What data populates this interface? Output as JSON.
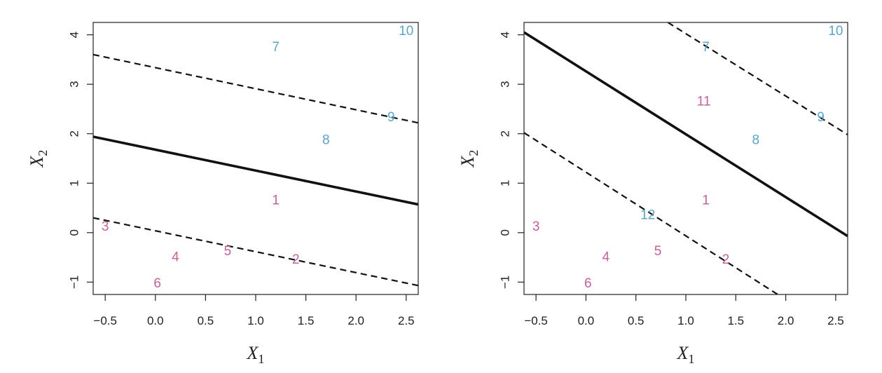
{
  "colors": {
    "blue": "#5aa5d0",
    "pink": "#c9609a"
  },
  "chart_data": [
    {
      "type": "scatter",
      "title": "",
      "xlabel_main": "X",
      "xlabel_sub": "1",
      "ylabel_main": "X",
      "ylabel_sub": "2",
      "xlim": [
        -0.62,
        2.62
      ],
      "ylim": [
        -1.25,
        4.25
      ],
      "xticks": [
        -0.5,
        0.0,
        0.5,
        1.0,
        1.5,
        2.0,
        2.5
      ],
      "xtick_labels": [
        "−0.5",
        "0.0",
        "0.5",
        "1.0",
        "1.5",
        "2.0",
        "2.5"
      ],
      "yticks": [
        -1,
        0,
        1,
        2,
        3,
        4
      ],
      "ytick_labels": [
        "−1",
        "0",
        "1",
        "2",
        "3",
        "4"
      ],
      "points": [
        {
          "label": "1",
          "x": 1.2,
          "y": 0.65,
          "class": "pink"
        },
        {
          "label": "2",
          "x": 1.4,
          "y": -0.55,
          "class": "pink"
        },
        {
          "label": "3",
          "x": -0.5,
          "y": 0.12,
          "class": "pink"
        },
        {
          "label": "4",
          "x": 0.2,
          "y": -0.5,
          "class": "pink"
        },
        {
          "label": "5",
          "x": 0.72,
          "y": -0.38,
          "class": "pink"
        },
        {
          "label": "6",
          "x": 0.02,
          "y": -1.03,
          "class": "pink"
        },
        {
          "label": "7",
          "x": 1.2,
          "y": 3.75,
          "class": "blue"
        },
        {
          "label": "8",
          "x": 1.7,
          "y": 1.87,
          "class": "blue"
        },
        {
          "label": "9",
          "x": 2.35,
          "y": 2.33,
          "class": "blue"
        },
        {
          "label": "10",
          "x": 2.5,
          "y": 4.07,
          "class": "blue"
        }
      ],
      "lines": [
        {
          "style": "solid",
          "x": [
            -0.62,
            2.62
          ],
          "y": [
            1.94,
            0.57
          ]
        },
        {
          "style": "dashed",
          "x": [
            -0.62,
            2.62
          ],
          "y": [
            3.6,
            2.22
          ]
        },
        {
          "style": "dashed",
          "x": [
            -0.62,
            2.62
          ],
          "y": [
            0.3,
            -1.07
          ]
        }
      ]
    },
    {
      "type": "scatter",
      "title": "",
      "xlabel_main": "X",
      "xlabel_sub": "1",
      "ylabel_main": "X",
      "ylabel_sub": "2",
      "xlim": [
        -0.62,
        2.62
      ],
      "ylim": [
        -1.25,
        4.25
      ],
      "xticks": [
        -0.5,
        0.0,
        0.5,
        1.0,
        1.5,
        2.0,
        2.5
      ],
      "xtick_labels": [
        "−0.5",
        "0.0",
        "0.5",
        "1.0",
        "1.5",
        "2.0",
        "2.5"
      ],
      "yticks": [
        -1,
        0,
        1,
        2,
        3,
        4
      ],
      "ytick_labels": [
        "−1",
        "0",
        "1",
        "2",
        "3",
        "4"
      ],
      "points": [
        {
          "label": "1",
          "x": 1.2,
          "y": 0.65,
          "class": "pink"
        },
        {
          "label": "2",
          "x": 1.4,
          "y": -0.55,
          "class": "pink"
        },
        {
          "label": "3",
          "x": -0.5,
          "y": 0.12,
          "class": "pink"
        },
        {
          "label": "4",
          "x": 0.2,
          "y": -0.5,
          "class": "pink"
        },
        {
          "label": "5",
          "x": 0.72,
          "y": -0.38,
          "class": "pink"
        },
        {
          "label": "6",
          "x": 0.02,
          "y": -1.03,
          "class": "pink"
        },
        {
          "label": "7",
          "x": 1.2,
          "y": 3.75,
          "class": "blue"
        },
        {
          "label": "8",
          "x": 1.7,
          "y": 1.87,
          "class": "blue"
        },
        {
          "label": "9",
          "x": 2.35,
          "y": 2.33,
          "class": "blue"
        },
        {
          "label": "10",
          "x": 2.5,
          "y": 4.07,
          "class": "blue"
        },
        {
          "label": "11",
          "x": 1.18,
          "y": 2.65,
          "class": "pink"
        },
        {
          "label": "12",
          "x": 0.62,
          "y": 0.35,
          "class": "blue"
        }
      ],
      "lines": [
        {
          "style": "solid",
          "x": [
            -0.62,
            2.62
          ],
          "y": [
            4.05,
            -0.07
          ]
        },
        {
          "style": "dashed",
          "x": [
            0.82,
            2.62
          ],
          "y": [
            4.25,
            1.98
          ]
        },
        {
          "style": "dashed",
          "x": [
            -0.62,
            1.92
          ],
          "y": [
            2.02,
            -1.25
          ]
        }
      ]
    }
  ]
}
